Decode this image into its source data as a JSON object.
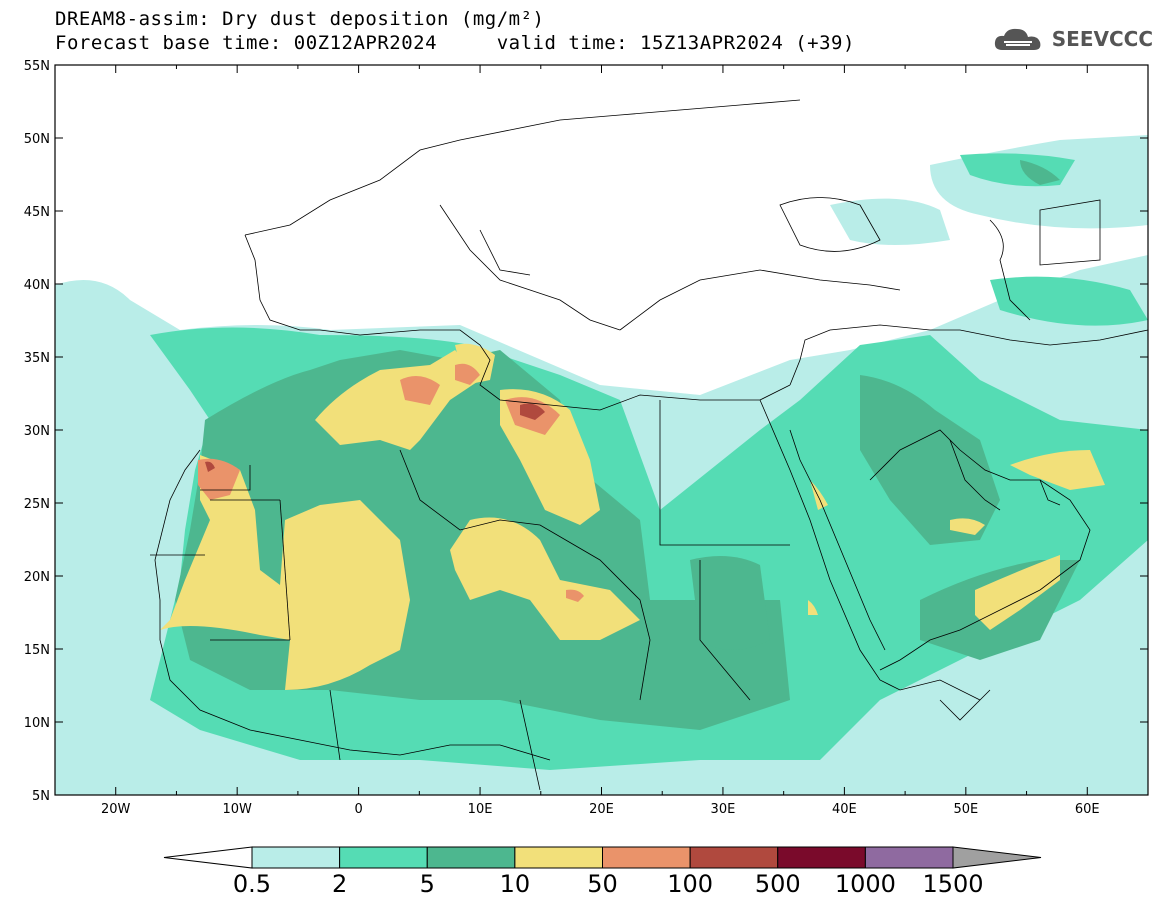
{
  "title": {
    "line1": "DREAM8-assim: Dry dust deposition (mg/m²)",
    "line2": "Forecast base time: 00Z12APR2024     valid time: 15Z13APR2024 (+39)"
  },
  "logo": {
    "text": "SEEVCCC",
    "icon": "cloud-icon"
  },
  "map": {
    "lon_range": [
      -25,
      65
    ],
    "lat_range": [
      5,
      55
    ],
    "lon_ticks": [
      {
        "value": -20,
        "label": "20W"
      },
      {
        "value": -10,
        "label": "10W"
      },
      {
        "value": 0,
        "label": "0"
      },
      {
        "value": 10,
        "label": "10E"
      },
      {
        "value": 20,
        "label": "20E"
      },
      {
        "value": 30,
        "label": "30E"
      },
      {
        "value": 40,
        "label": "40E"
      },
      {
        "value": 50,
        "label": "50E"
      },
      {
        "value": 60,
        "label": "60E"
      }
    ],
    "lat_ticks": [
      {
        "value": 5,
        "label": "5N"
      },
      {
        "value": 10,
        "label": "10N"
      },
      {
        "value": 15,
        "label": "15N"
      },
      {
        "value": 20,
        "label": "20N"
      },
      {
        "value": 25,
        "label": "25N"
      },
      {
        "value": 30,
        "label": "30N"
      },
      {
        "value": 35,
        "label": "35N"
      },
      {
        "value": 40,
        "label": "40N"
      },
      {
        "value": 45,
        "label": "45N"
      },
      {
        "value": 50,
        "label": "50N"
      },
      {
        "value": 55,
        "label": "55N"
      }
    ]
  },
  "colorbar": {
    "labels": [
      "0.5",
      "2",
      "5",
      "10",
      "50",
      "100",
      "500",
      "1000",
      "1500"
    ],
    "colors": [
      "#ffffff",
      "#b9ede8",
      "#55dcb4",
      "#4db78f",
      "#f2e07a",
      "#ea936a",
      "#b0493e",
      "#7a0a2b",
      "#8f6aa0",
      "#a0a0a0"
    ]
  }
}
